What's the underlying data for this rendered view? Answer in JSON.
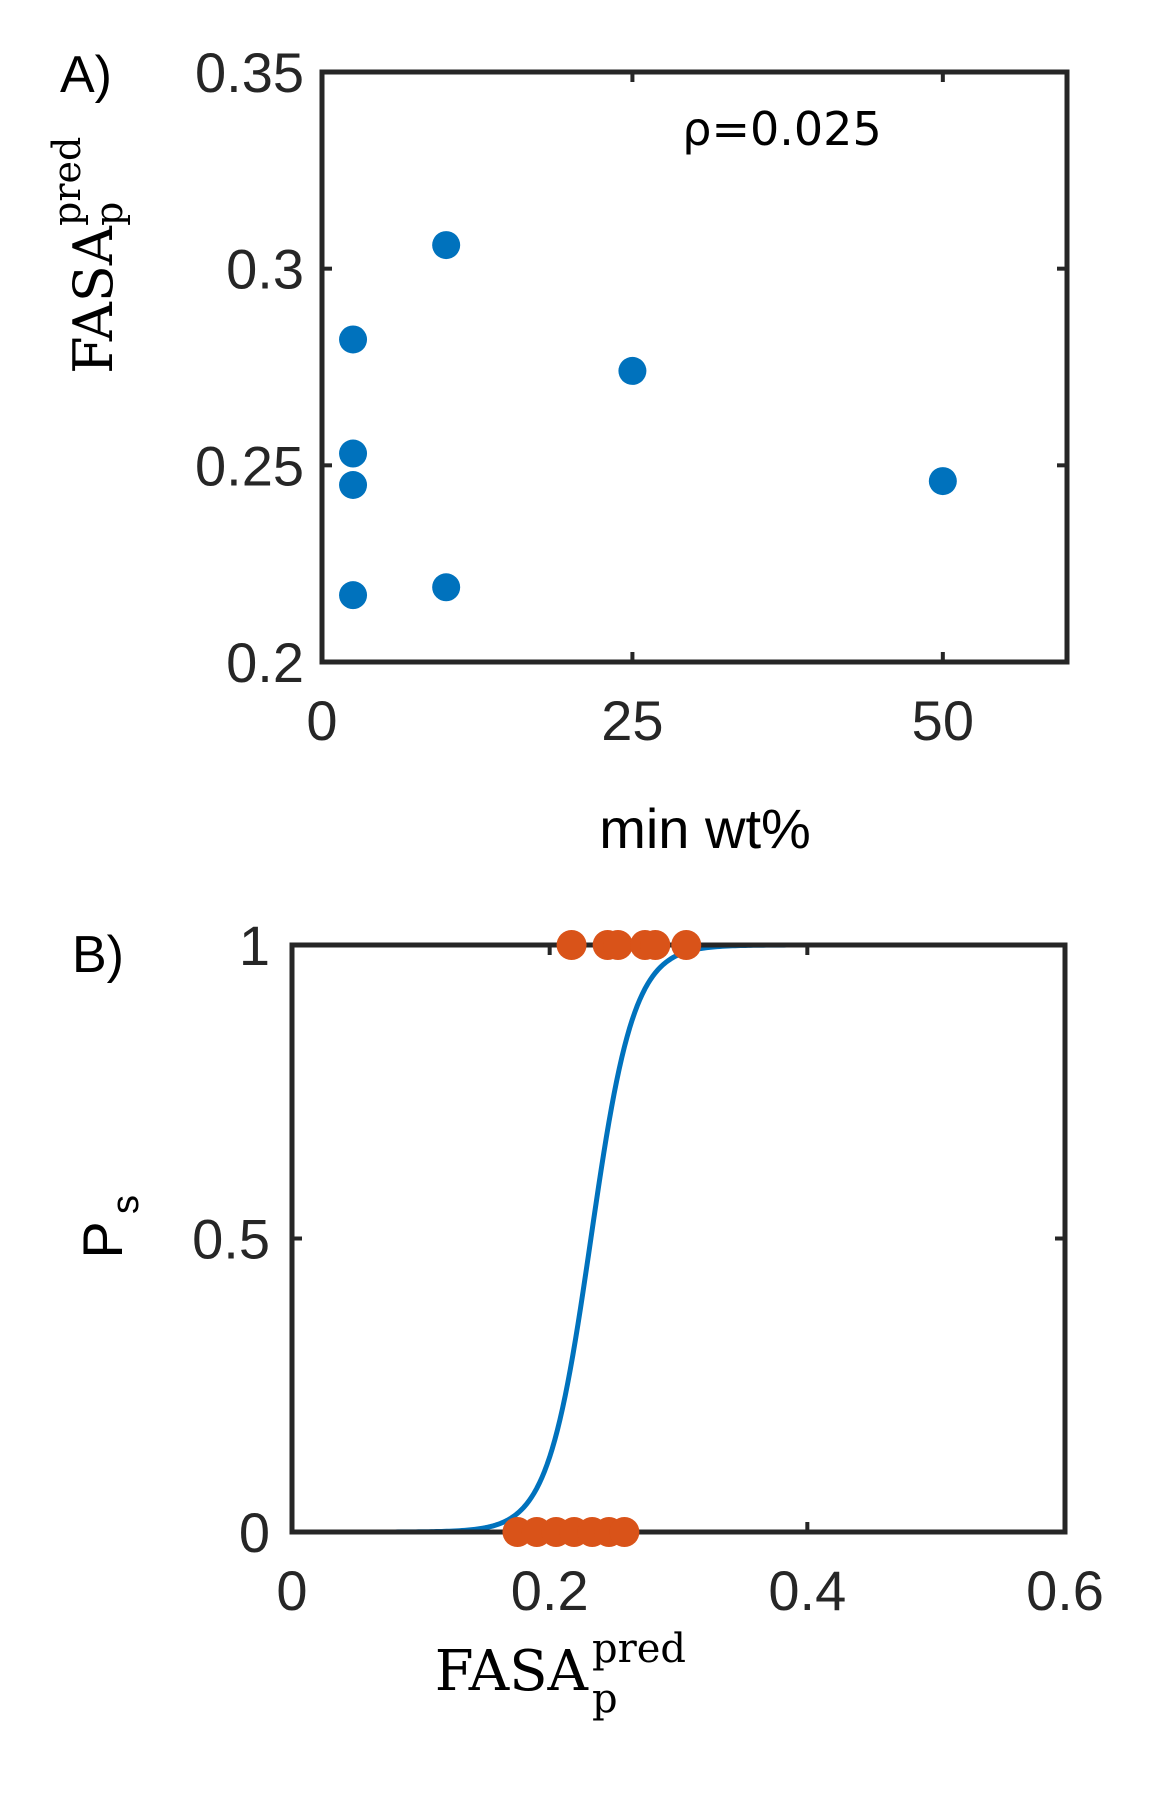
{
  "chart_data": [
    {
      "type": "scatter",
      "panel_label": "A)",
      "xlabel": "min wt%",
      "ylabel": {
        "base": "FASA",
        "sub": "p",
        "sup": "pred"
      },
      "xlim": [
        0,
        60
      ],
      "ylim": [
        0.2,
        0.35
      ],
      "xticks": [
        0,
        25,
        50
      ],
      "xtick_labels": [
        "0",
        "25",
        "50"
      ],
      "yticks": [
        0.2,
        0.25,
        0.3,
        0.35
      ],
      "ytick_labels": [
        "0.2",
        "0.25",
        "0.3",
        "0.35"
      ],
      "annotation": "ρ=0.025",
      "grid": false,
      "marker_color": "#0072BD",
      "points": [
        {
          "x": 2.5,
          "y": 0.282
        },
        {
          "x": 2.5,
          "y": 0.253
        },
        {
          "x": 2.5,
          "y": 0.245
        },
        {
          "x": 2.5,
          "y": 0.217
        },
        {
          "x": 10,
          "y": 0.306
        },
        {
          "x": 10,
          "y": 0.219
        },
        {
          "x": 25,
          "y": 0.274
        },
        {
          "x": 50,
          "y": 0.246
        }
      ]
    },
    {
      "type": "line",
      "panel_label": "B)",
      "xlabel": {
        "base": "FASA",
        "sub": "p",
        "sup": "pred"
      },
      "ylabel": {
        "base": "P",
        "sub": "s"
      },
      "xlim": [
        0,
        0.6
      ],
      "ylim": [
        0,
        1
      ],
      "xticks": [
        0,
        0.2,
        0.4,
        0.6
      ],
      "xtick_labels": [
        "0",
        "0.2",
        "0.4",
        "0.6"
      ],
      "yticks": [
        0,
        0.5,
        1
      ],
      "ytick_labels": [
        "0",
        "0.5",
        "1"
      ],
      "grid": false,
      "curve": {
        "kind": "logistic",
        "midpoint": 0.232,
        "slope": 60,
        "color": "#0072BD"
      },
      "points_color": "#D95319",
      "points_at_1": [
        0.217,
        0.245,
        0.253,
        0.274,
        0.282,
        0.306
      ],
      "points_at_0": [
        0.175,
        0.19,
        0.205,
        0.219,
        0.233,
        0.246,
        0.258
      ]
    }
  ]
}
